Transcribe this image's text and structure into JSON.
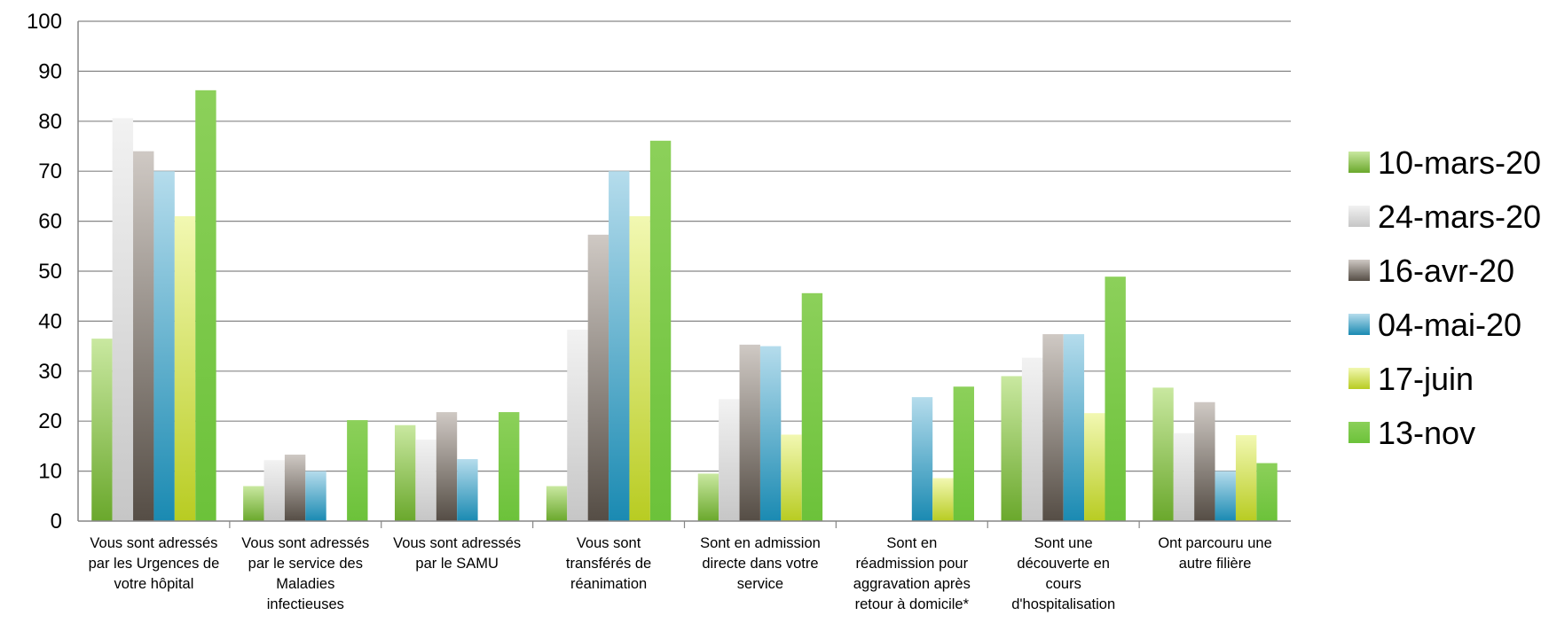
{
  "chart_data": {
    "type": "bar",
    "title": "",
    "xlabel": "",
    "ylabel": "",
    "ylim": [
      0,
      100
    ],
    "yticks": [
      0,
      10,
      20,
      30,
      40,
      50,
      60,
      70,
      80,
      90,
      100
    ],
    "grid": true,
    "legend_position": "right",
    "categories": [
      [
        "Vous sont adressés",
        "par les Urgences de",
        "votre hôpital"
      ],
      [
        "Vous sont adressés",
        "par le service des",
        "Maladies",
        "infectieuses"
      ],
      [
        "Vous sont adressés",
        "par le SAMU"
      ],
      [
        "Vous sont",
        "transférés de",
        "réanimation"
      ],
      [
        "Sont en admission",
        "directe dans votre",
        "service"
      ],
      [
        "Sont en",
        "réadmission pour",
        "aggravation après",
        "retour à domicile*"
      ],
      [
        "Sont une",
        "découverte en",
        "cours",
        "d'hospitalisation"
      ],
      [
        "Ont parcouru une",
        "autre filière"
      ]
    ],
    "series": [
      {
        "name": "10-mars-20",
        "colors": [
          "#c9e8a0",
          "#6aa82c"
        ],
        "values": [
          36.5,
          7,
          19.2,
          7,
          9.5,
          0,
          29,
          26.7
        ]
      },
      {
        "name": "24-mars-20",
        "colors": [
          "#f2f2f2",
          "#c6c6c6"
        ],
        "values": [
          80.6,
          12.2,
          16.3,
          38.3,
          24.4,
          0,
          32.7,
          17.6
        ]
      },
      {
        "name": "16-avr-20",
        "colors": [
          "#cfc9c4",
          "#554d45"
        ],
        "values": [
          74,
          13.3,
          21.8,
          57.3,
          35.3,
          0,
          37.4,
          23.8
        ]
      },
      {
        "name": "04-mai-20",
        "colors": [
          "#b5dcec",
          "#1a8ab2"
        ],
        "values": [
          70,
          10,
          12.4,
          70,
          35,
          24.8,
          37.4,
          10
        ]
      },
      {
        "name": "17-juin",
        "colors": [
          "#f2f8b2",
          "#b8cc22"
        ],
        "values": [
          61,
          0,
          0,
          61,
          17.3,
          8.6,
          21.6,
          17.2
        ]
      },
      {
        "name": "13-nov",
        "colors": [
          "#8cd05a",
          "#6cc23a"
        ],
        "values": [
          86.2,
          20.2,
          21.8,
          76.1,
          45.6,
          26.9,
          48.9,
          11.6
        ]
      }
    ]
  }
}
